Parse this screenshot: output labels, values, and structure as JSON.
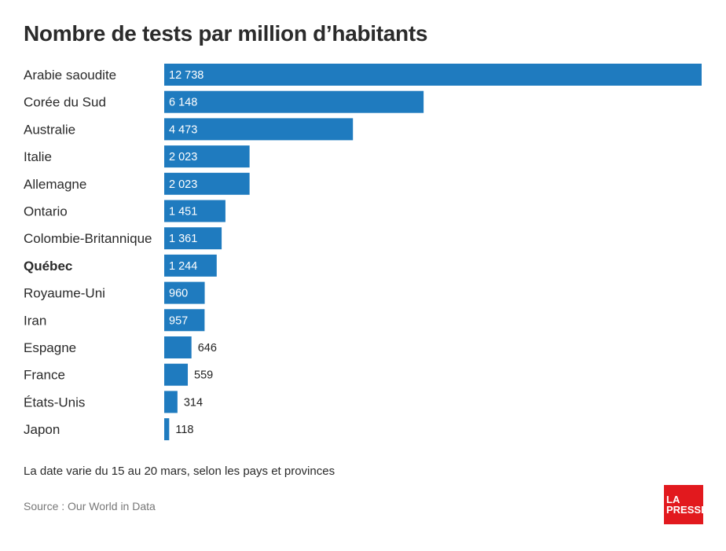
{
  "title": "Nombre de tests par million d’habitants",
  "note": "La date varie du 15 au 20 mars, selon les pays et provinces",
  "source": "Source : Our World in Data",
  "logo": {
    "line1": "LA",
    "line2": "PRESSE",
    "color": "#e2191e"
  },
  "colors": {
    "bar": "#1f7bbf",
    "label_inside": "#ffffff",
    "label_outside": "#222222"
  },
  "chart_data": {
    "type": "bar",
    "orientation": "horizontal",
    "title": "Nombre de tests par million d’habitants",
    "categories": [
      "Arabie saoudite",
      "Corée du Sud",
      "Australie",
      "Italie",
      "Allemagne",
      "Ontario",
      "Colombie-Britannique",
      "Québec",
      "Royaume-Uni",
      "Iran",
      "Espagne",
      "France",
      "États-Unis",
      "Japon"
    ],
    "values": [
      12738,
      6148,
      4473,
      2023,
      2023,
      1451,
      1361,
      1244,
      960,
      957,
      646,
      559,
      314,
      118
    ],
    "value_labels": [
      "12 738",
      "6 148",
      "4 473",
      "2 023",
      "2 023",
      "1 451",
      "1 361",
      "1 244",
      "960",
      "957",
      "646",
      "559",
      "314",
      "118"
    ],
    "highlighted": [
      "Québec"
    ],
    "xlim": [
      0,
      12738
    ],
    "grid": false,
    "legend": "none"
  }
}
